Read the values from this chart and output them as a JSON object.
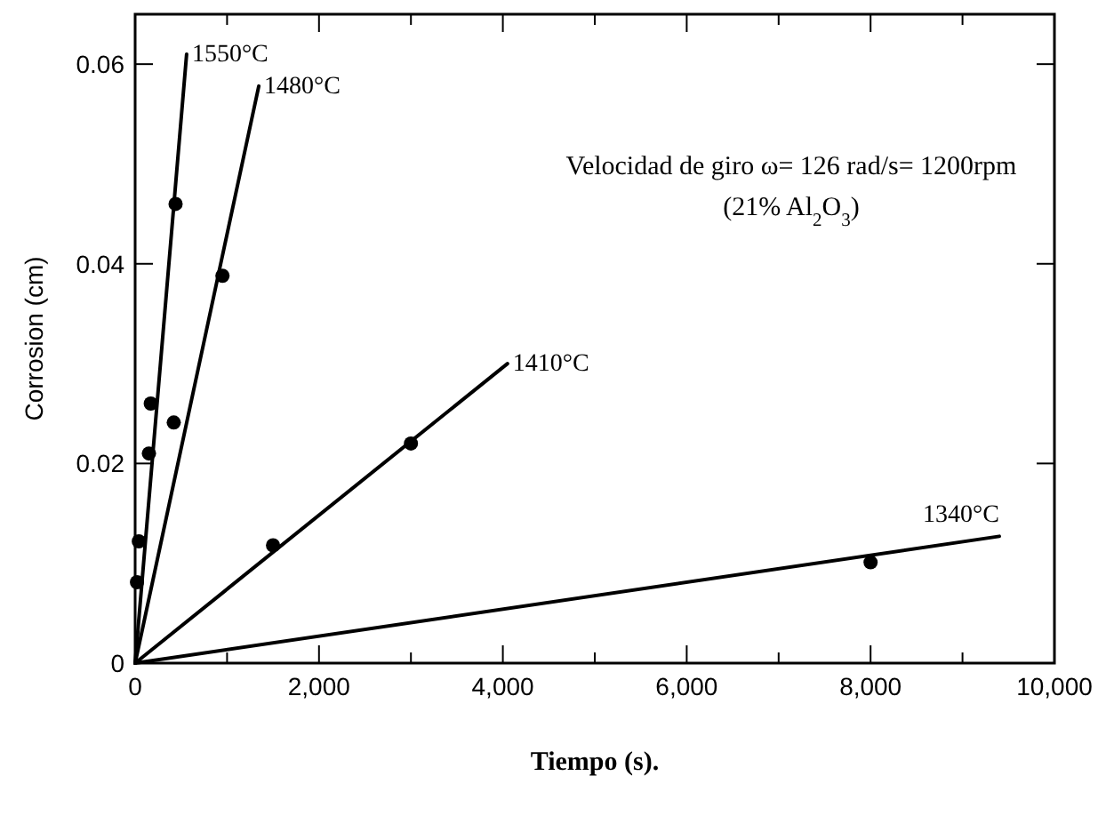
{
  "chart_data": {
    "type": "line",
    "xlabel": "Tiempo (s).",
    "ylabel": "Corrosion (cm)",
    "annotations": [
      "Velocidad de giro ω= 126 rad/s= 1200rpm",
      "(21% Al$_{2}$O$_{3}$)"
    ],
    "xlim": [
      0,
      10000
    ],
    "ylim": [
      0,
      0.065
    ],
    "xticks": [
      0,
      {
        "value": 1000,
        "label": null
      },
      {
        "value": 2000,
        "label": "2,000"
      },
      {
        "value": 3000,
        "label": null
      },
      {
        "value": 4000,
        "label": "4,000"
      },
      {
        "value": 5000,
        "label": null
      },
      {
        "value": 6000,
        "label": "6,000"
      },
      {
        "value": 7000,
        "label": null
      },
      {
        "value": 8000,
        "label": "8,000"
      },
      {
        "value": 9000,
        "label": null
      },
      {
        "value": 10000,
        "label": "10,000"
      }
    ],
    "yticks": [
      0,
      0.02,
      0.04,
      0.06
    ],
    "grid": false,
    "line_style": "solid",
    "series": [
      {
        "name": "1550°C",
        "color": "#000000",
        "x": [
          0,
          560
        ],
        "values": [
          0,
          0.061
        ]
      },
      {
        "name": "1480°C",
        "color": "#000000",
        "x": [
          0,
          1345
        ],
        "values": [
          0,
          0.0578
        ]
      },
      {
        "name": "1410°C",
        "color": "#000000",
        "x": [
          0,
          4050
        ],
        "values": [
          0,
          0.03
        ]
      },
      {
        "name": "1340°C",
        "color": "#000000",
        "x": [
          0,
          9400
        ],
        "values": [
          0,
          0.0127
        ]
      },
      {
        "type": "scatter",
        "marker": "circle",
        "color": "#000000",
        "x": [
          20,
          40,
          150,
          170,
          440
        ],
        "values": [
          0.0081,
          0.0122,
          0.021,
          0.026,
          0.046
        ]
      },
      {
        "type": "scatter",
        "marker": "circle",
        "color": "#000000",
        "x": [
          420,
          950
        ],
        "values": [
          0.0241,
          0.0388
        ]
      },
      {
        "type": "scatter",
        "marker": "circle",
        "color": "#000000",
        "x": [
          1500,
          3000
        ],
        "values": [
          0.0118,
          0.022
        ]
      },
      {
        "type": "scatter",
        "marker": "circle",
        "color": "#000000",
        "x": [
          8000
        ],
        "values": [
          0.0101
        ]
      }
    ]
  }
}
